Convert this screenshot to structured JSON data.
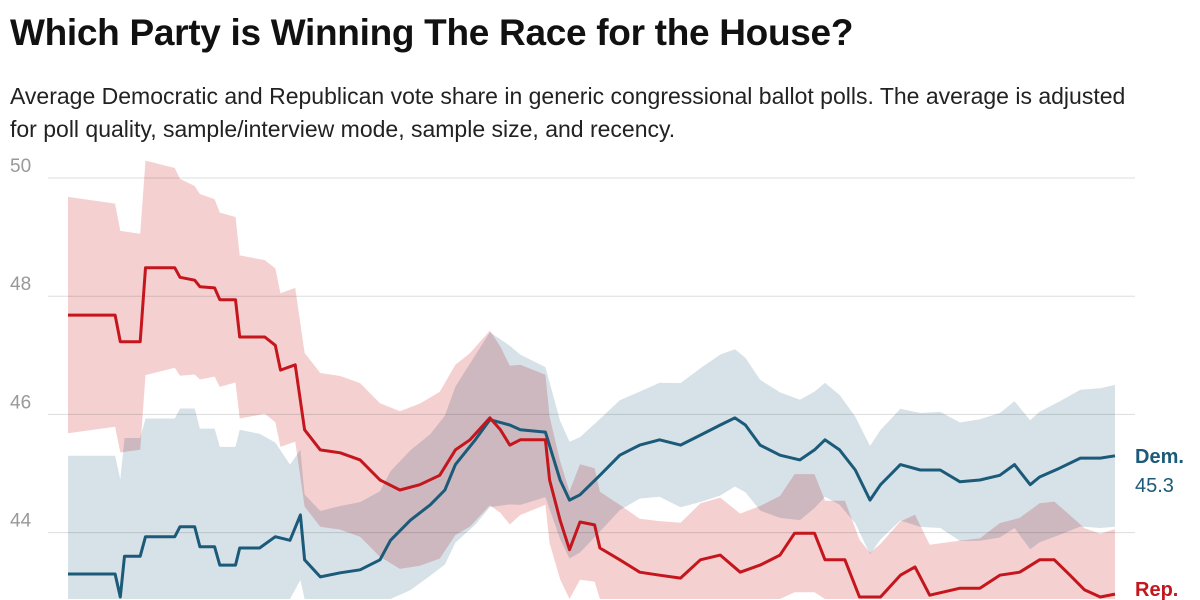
{
  "title": "Which Party is Winning The Race for the House?",
  "subtitle": "Average Democratic and Republican vote share in generic congressional ballot polls. The average is adjusted for poll quality, sample/interview mode, sample size, and recency.",
  "chart_data": {
    "type": "line",
    "title": "Which Party is Winning The Race for the House?",
    "xlabel": "",
    "ylabel": "",
    "x_units": "time index (0 = start, 100 = latest)",
    "ylim": [
      42.9,
      50.3
    ],
    "yticks": [
      44,
      46,
      48,
      50
    ],
    "grid": true,
    "colors": {
      "dem": "#1b5a78",
      "rep": "#c4161c",
      "dem_band": "#cfdde4",
      "rep_band": "#f2c8c9"
    },
    "series": [
      {
        "name": "Dem.",
        "last_label": "45.3",
        "points": [
          [
            0,
            43.3
          ],
          [
            4.5,
            43.3
          ],
          [
            5,
            42.9
          ],
          [
            5.4,
            43.6
          ],
          [
            6.9,
            43.6
          ],
          [
            7.4,
            43.93
          ],
          [
            10.2,
            43.93
          ],
          [
            10.7,
            44.1
          ],
          [
            12.1,
            44.1
          ],
          [
            12.6,
            43.76
          ],
          [
            14,
            43.76
          ],
          [
            14.5,
            43.45
          ],
          [
            16,
            43.45
          ],
          [
            16.4,
            43.74
          ],
          [
            18.3,
            43.74
          ],
          [
            19.8,
            43.93
          ],
          [
            21.2,
            43.87
          ],
          [
            22.2,
            44.3
          ],
          [
            22.6,
            43.54
          ],
          [
            24.1,
            43.25
          ],
          [
            26,
            43.32
          ],
          [
            27.9,
            43.37
          ],
          [
            29.8,
            43.54
          ],
          [
            30.8,
            43.87
          ],
          [
            32.7,
            44.21
          ],
          [
            34.6,
            44.47
          ],
          [
            36,
            44.72
          ],
          [
            37,
            45.15
          ],
          [
            38.9,
            45.57
          ],
          [
            40.3,
            45.91
          ],
          [
            42.2,
            45.82
          ],
          [
            43.2,
            45.74
          ],
          [
            45.6,
            45.7
          ],
          [
            47,
            44.89
          ],
          [
            47.9,
            44.55
          ],
          [
            48.9,
            44.64
          ],
          [
            50.8,
            44.97
          ],
          [
            52.7,
            45.31
          ],
          [
            54.6,
            45.48
          ],
          [
            56.5,
            45.57
          ],
          [
            58.5,
            45.48
          ],
          [
            60.4,
            45.65
          ],
          [
            62.3,
            45.82
          ],
          [
            63.7,
            45.94
          ],
          [
            64.7,
            45.82
          ],
          [
            66.1,
            45.48
          ],
          [
            68,
            45.31
          ],
          [
            69.9,
            45.23
          ],
          [
            71.3,
            45.4
          ],
          [
            72.3,
            45.57
          ],
          [
            73.7,
            45.4
          ],
          [
            75.2,
            45.06
          ],
          [
            76.6,
            44.55
          ],
          [
            77.6,
            44.81
          ],
          [
            79.5,
            45.15
          ],
          [
            81.4,
            45.06
          ],
          [
            83.3,
            45.06
          ],
          [
            85.2,
            44.86
          ],
          [
            87.1,
            44.89
          ],
          [
            89,
            44.97
          ],
          [
            90.4,
            45.15
          ],
          [
            91.9,
            44.81
          ],
          [
            92.8,
            44.94
          ],
          [
            94.7,
            45.09
          ],
          [
            96.7,
            45.26
          ],
          [
            98.6,
            45.26
          ],
          [
            100,
            45.3
          ]
        ],
        "ci_halfwidth": [
          [
            0,
            2.0
          ],
          [
            18,
            2.0
          ],
          [
            22,
            1.1
          ],
          [
            35,
            1.2
          ],
          [
            40,
            1.5
          ],
          [
            47,
            1.0
          ],
          [
            55,
            0.9
          ],
          [
            62,
            1.2
          ],
          [
            75,
            0.9
          ],
          [
            85,
            1.0
          ],
          [
            100,
            1.2
          ]
        ]
      },
      {
        "name": "Rep.",
        "last_label": "Rep.",
        "points": [
          [
            0,
            47.68
          ],
          [
            4.5,
            47.68
          ],
          [
            5,
            47.23
          ],
          [
            6.9,
            47.23
          ],
          [
            7.4,
            48.48
          ],
          [
            10.2,
            48.48
          ],
          [
            10.7,
            48.32
          ],
          [
            12.1,
            48.27
          ],
          [
            12.6,
            48.16
          ],
          [
            14,
            48.14
          ],
          [
            14.5,
            47.94
          ],
          [
            16,
            47.94
          ],
          [
            16.4,
            47.31
          ],
          [
            18.8,
            47.31
          ],
          [
            19.8,
            47.17
          ],
          [
            20.3,
            46.75
          ],
          [
            21.7,
            46.84
          ],
          [
            22.6,
            45.74
          ],
          [
            24.1,
            45.4
          ],
          [
            26,
            45.35
          ],
          [
            27.9,
            45.23
          ],
          [
            29.8,
            44.89
          ],
          [
            31.7,
            44.72
          ],
          [
            33.6,
            44.81
          ],
          [
            35.5,
            44.97
          ],
          [
            37,
            45.4
          ],
          [
            38.4,
            45.57
          ],
          [
            40.3,
            45.94
          ],
          [
            41.3,
            45.74
          ],
          [
            42.2,
            45.48
          ],
          [
            43.2,
            45.57
          ],
          [
            45.6,
            45.57
          ],
          [
            46.0,
            44.89
          ],
          [
            47,
            44.21
          ],
          [
            47.9,
            43.71
          ],
          [
            48.9,
            44.18
          ],
          [
            50.3,
            44.13
          ],
          [
            50.8,
            43.74
          ],
          [
            52.7,
            43.54
          ],
          [
            54.6,
            43.33
          ],
          [
            56.5,
            43.28
          ],
          [
            58.5,
            43.23
          ],
          [
            60.4,
            43.54
          ],
          [
            62.3,
            43.62
          ],
          [
            64.2,
            43.33
          ],
          [
            66.1,
            43.45
          ],
          [
            68,
            43.62
          ],
          [
            69.4,
            43.99
          ],
          [
            71.3,
            43.99
          ],
          [
            72.3,
            43.54
          ],
          [
            74.2,
            43.54
          ],
          [
            75.6,
            42.89
          ],
          [
            76.6,
            42.69
          ],
          [
            77.6,
            42.86
          ],
          [
            79.5,
            43.28
          ],
          [
            80.9,
            43.42
          ],
          [
            82.3,
            42.94
          ],
          [
            85.2,
            43.06
          ],
          [
            87.1,
            43.06
          ],
          [
            89,
            43.28
          ],
          [
            90.9,
            43.33
          ],
          [
            92.8,
            43.54
          ],
          [
            94.2,
            43.54
          ],
          [
            95.7,
            43.28
          ],
          [
            97.1,
            43.03
          ],
          [
            98.6,
            42.91
          ],
          [
            100,
            42.96
          ]
        ],
        "ci_halfwidth": [
          [
            0,
            2.0
          ],
          [
            8,
            1.8
          ],
          [
            18,
            1.3
          ],
          [
            30,
            1.3
          ],
          [
            40,
            1.5
          ],
          [
            47,
            1.0
          ],
          [
            55,
            0.9
          ],
          [
            65,
            1.0
          ],
          [
            75,
            1.0
          ],
          [
            85,
            0.8
          ],
          [
            100,
            1.1
          ]
        ]
      }
    ]
  }
}
